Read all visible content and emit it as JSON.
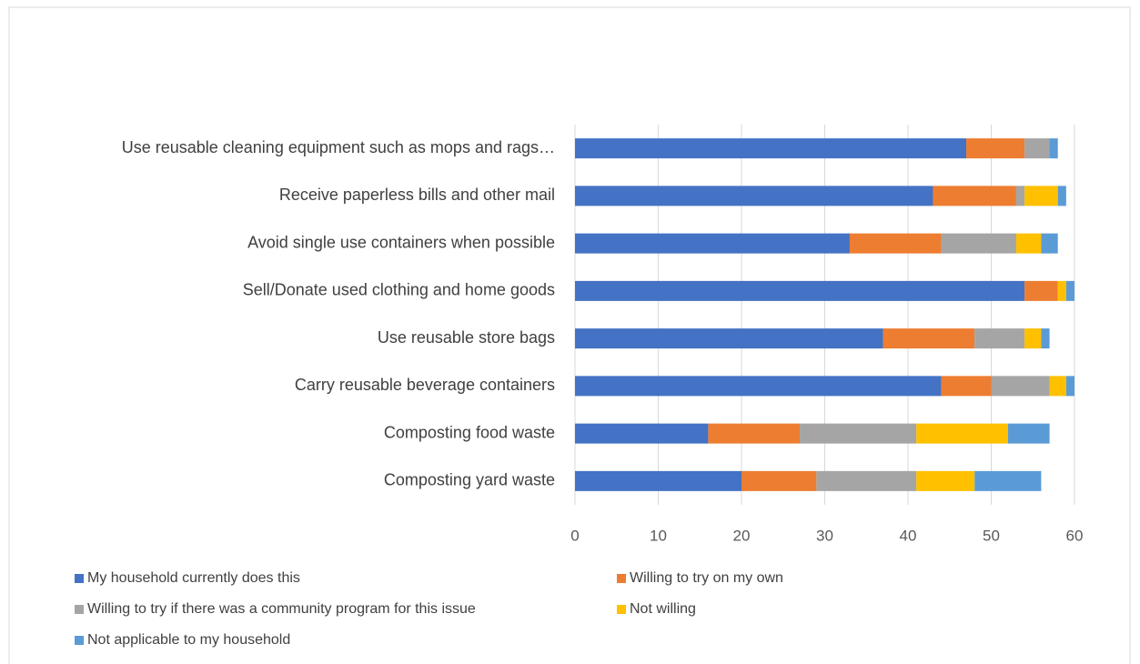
{
  "chart_data": {
    "type": "stacked_barh",
    "categories": [
      "Use reusable cleaning equipment such as mops and rags…",
      "Receive paperless bills and other mail",
      "Avoid single use containers when possible",
      "Sell/Donate used clothing and home goods",
      "Use reusable store bags",
      "Carry reusable beverage containers",
      "Composting food waste",
      "Composting yard waste"
    ],
    "series": [
      {
        "name": "My household currently does this",
        "color": "#4472c4",
        "values": [
          47,
          43,
          33,
          54,
          37,
          44,
          16,
          20
        ]
      },
      {
        "name": "Willing to try on my own",
        "color": "#ed7d31",
        "values": [
          7,
          10,
          11,
          4,
          11,
          6,
          11,
          9
        ]
      },
      {
        "name": "Willing to try if there was a community program for this issue",
        "color": "#a5a5a5",
        "values": [
          3,
          1,
          9,
          0,
          6,
          7,
          14,
          12
        ]
      },
      {
        "name": "Not willing",
        "color": "#ffc000",
        "values": [
          0,
          4,
          3,
          1,
          2,
          2,
          11,
          7
        ]
      },
      {
        "name": "Not applicable to my household",
        "color": "#5b9bd5",
        "values": [
          1,
          1,
          2,
          1,
          1,
          1,
          5,
          8
        ]
      }
    ],
    "xlim": [
      0,
      60
    ],
    "xticks": [
      0,
      10,
      20,
      30,
      40,
      50,
      60
    ],
    "grid": true
  }
}
